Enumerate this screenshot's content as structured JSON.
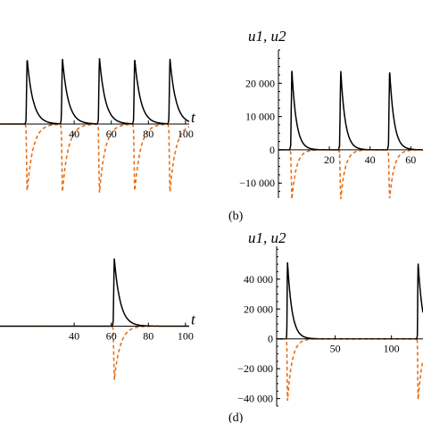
{
  "chart_data": [
    {
      "panel": "a",
      "type": "line",
      "panel_label": "",
      "ylabel": "",
      "xlabel": "t",
      "xlim": [
        0,
        102
      ],
      "ylim": [
        -28000,
        28000
      ],
      "x_ticks": [
        40,
        60,
        80,
        100
      ],
      "y_ticks": [],
      "spike_times": [
        14,
        33,
        53,
        72,
        91
      ],
      "series": [
        {
          "key": "u1",
          "color": "#000000",
          "style": "solid",
          "peak": 25000
        },
        {
          "key": "u2",
          "color": "#e8701a",
          "style": "dashed",
          "peak": -26000
        }
      ]
    },
    {
      "panel": "b",
      "type": "line",
      "panel_label": "(b)",
      "ylabel": "u1, u2",
      "xlabel": "",
      "xlim": [
        -5,
        66
      ],
      "ylim": [
        -14500,
        30000
      ],
      "x_ticks": [
        20,
        40,
        60
      ],
      "y_ticks": [
        -10000,
        0,
        10000,
        20000
      ],
      "y_tick_labels": [
        "−10 000",
        "0",
        "10 000",
        "20 000"
      ],
      "spike_times": [
        1,
        25,
        49
      ],
      "series": [
        {
          "key": "u1",
          "color": "#000000",
          "style": "solid",
          "peak": 24000
        },
        {
          "key": "u2",
          "color": "#e8701a",
          "style": "dashed",
          "peak": -15000
        }
      ]
    },
    {
      "panel": "c",
      "type": "line",
      "panel_label": "",
      "ylabel": "",
      "xlabel": "t",
      "xlim": [
        0,
        102
      ],
      "ylim": [
        -28000,
        28000
      ],
      "x_ticks": [
        40,
        60,
        80,
        100
      ],
      "y_ticks": [],
      "spike_times": [
        61
      ],
      "series": [
        {
          "key": "u1",
          "color": "#000000",
          "style": "solid",
          "peak": 24000
        },
        {
          "key": "u2",
          "color": "#e8701a",
          "style": "dashed",
          "peak": -19000
        }
      ]
    },
    {
      "panel": "d",
      "type": "line",
      "panel_label": "(d)",
      "ylabel": "u1, u2",
      "xlabel": "",
      "xlim": [
        -2,
        128
      ],
      "ylim": [
        -45000,
        62000
      ],
      "x_ticks": [
        50,
        100
      ],
      "y_ticks": [
        -40000,
        -20000,
        0,
        20000,
        40000
      ],
      "y_tick_labels": [
        "−40 000",
        "−20 000",
        "0",
        "20 000",
        "40 000"
      ],
      "spike_times": [
        7,
        123
      ],
      "series": [
        {
          "key": "u1",
          "color": "#000000",
          "style": "solid",
          "peak": 52000
        },
        {
          "key": "u2",
          "color": "#e8701a",
          "style": "dashed",
          "peak": -42000
        }
      ]
    }
  ]
}
